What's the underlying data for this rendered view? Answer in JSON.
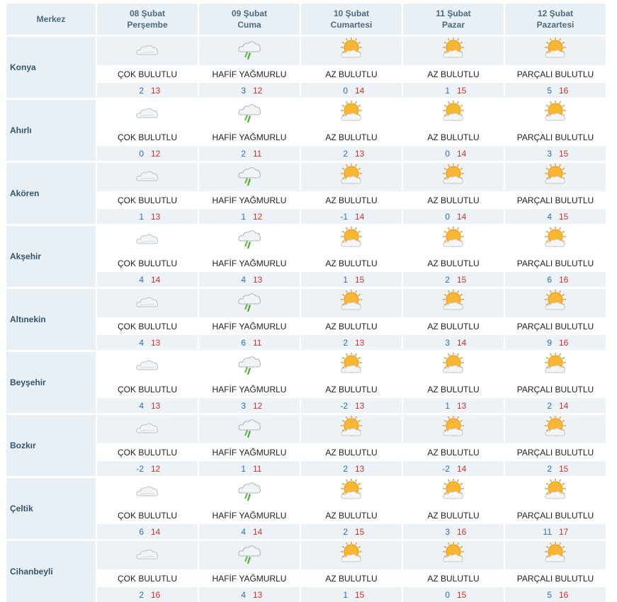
{
  "header": {
    "merkez_label": "Merkez",
    "days": [
      {
        "date": "08 Şubat",
        "weekday": "Perşembe"
      },
      {
        "date": "09 Şubat",
        "weekday": "Cuma"
      },
      {
        "date": "10 Şubat",
        "weekday": "Cumartesi"
      },
      {
        "date": "11 Şubat",
        "weekday": "Pazar"
      },
      {
        "date": "12 Şubat",
        "weekday": "Pazartesi"
      }
    ]
  },
  "icons": {
    "cloud": "cloudy-icon",
    "rain": "light-rain-icon",
    "sun": "partly-sunny-icon"
  },
  "colors": {
    "min_temp": "#2e6bbd",
    "max_temp": "#d1322b",
    "header_bg": "#e8f0f5"
  },
  "rows": [
    {
      "city": "Konya",
      "days": [
        {
          "icon": "cloud",
          "desc": "ÇOK BULUTLU",
          "min": "2",
          "max": "13"
        },
        {
          "icon": "rain",
          "desc": "HAFİF YAĞMURLU",
          "min": "3",
          "max": "12"
        },
        {
          "icon": "sun",
          "desc": "AZ BULUTLU",
          "min": "0",
          "max": "14"
        },
        {
          "icon": "sun",
          "desc": "AZ BULUTLU",
          "min": "1",
          "max": "15"
        },
        {
          "icon": "sun",
          "desc": "PARÇALI BULUTLU",
          "min": "5",
          "max": "16"
        }
      ]
    },
    {
      "city": "Ahırlı",
      "days": [
        {
          "icon": "cloud",
          "desc": "ÇOK BULUTLU",
          "min": "0",
          "max": "12"
        },
        {
          "icon": "rain",
          "desc": "HAFİF YAĞMURLU",
          "min": "2",
          "max": "11"
        },
        {
          "icon": "sun",
          "desc": "AZ BULUTLU",
          "min": "2",
          "max": "13"
        },
        {
          "icon": "sun",
          "desc": "AZ BULUTLU",
          "min": "0",
          "max": "14"
        },
        {
          "icon": "sun",
          "desc": "PARÇALI BULUTLU",
          "min": "3",
          "max": "15"
        }
      ]
    },
    {
      "city": "Akören",
      "days": [
        {
          "icon": "cloud",
          "desc": "ÇOK BULUTLU",
          "min": "1",
          "max": "13"
        },
        {
          "icon": "rain",
          "desc": "HAFİF YAĞMURLU",
          "min": "1",
          "max": "12"
        },
        {
          "icon": "sun",
          "desc": "AZ BULUTLU",
          "min": "-1",
          "max": "14"
        },
        {
          "icon": "sun",
          "desc": "AZ BULUTLU",
          "min": "0",
          "max": "14"
        },
        {
          "icon": "sun",
          "desc": "PARÇALI BULUTLU",
          "min": "4",
          "max": "15"
        }
      ]
    },
    {
      "city": "Akşehir",
      "days": [
        {
          "icon": "cloud",
          "desc": "ÇOK BULUTLU",
          "min": "4",
          "max": "14"
        },
        {
          "icon": "rain",
          "desc": "HAFİF YAĞMURLU",
          "min": "4",
          "max": "13"
        },
        {
          "icon": "sun",
          "desc": "AZ BULUTLU",
          "min": "1",
          "max": "15"
        },
        {
          "icon": "sun",
          "desc": "AZ BULUTLU",
          "min": "2",
          "max": "15"
        },
        {
          "icon": "sun",
          "desc": "PARÇALI BULUTLU",
          "min": "6",
          "max": "16"
        }
      ]
    },
    {
      "city": "Altınekin",
      "days": [
        {
          "icon": "cloud",
          "desc": "ÇOK BULUTLU",
          "min": "4",
          "max": "13"
        },
        {
          "icon": "rain",
          "desc": "HAFİF YAĞMURLU",
          "min": "6",
          "max": "11"
        },
        {
          "icon": "sun",
          "desc": "AZ BULUTLU",
          "min": "2",
          "max": "13"
        },
        {
          "icon": "sun",
          "desc": "AZ BULUTLU",
          "min": "3",
          "max": "14"
        },
        {
          "icon": "sun",
          "desc": "PARÇALI BULUTLU",
          "min": "9",
          "max": "16"
        }
      ]
    },
    {
      "city": "Beyşehir",
      "days": [
        {
          "icon": "cloud",
          "desc": "ÇOK BULUTLU",
          "min": "4",
          "max": "13"
        },
        {
          "icon": "rain",
          "desc": "HAFİF YAĞMURLU",
          "min": "3",
          "max": "12"
        },
        {
          "icon": "sun",
          "desc": "AZ BULUTLU",
          "min": "-2",
          "max": "13"
        },
        {
          "icon": "sun",
          "desc": "AZ BULUTLU",
          "min": "1",
          "max": "13"
        },
        {
          "icon": "sun",
          "desc": "PARÇALI BULUTLU",
          "min": "2",
          "max": "14"
        }
      ]
    },
    {
      "city": "Bozkır",
      "days": [
        {
          "icon": "cloud",
          "desc": "ÇOK BULUTLU",
          "min": "-2",
          "max": "12"
        },
        {
          "icon": "rain",
          "desc": "HAFİF YAĞMURLU",
          "min": "1",
          "max": "11"
        },
        {
          "icon": "sun",
          "desc": "AZ BULUTLU",
          "min": "2",
          "max": "13"
        },
        {
          "icon": "sun",
          "desc": "AZ BULUTLU",
          "min": "-2",
          "max": "14"
        },
        {
          "icon": "sun",
          "desc": "PARÇALI BULUTLU",
          "min": "2",
          "max": "15"
        }
      ]
    },
    {
      "city": "Çeltik",
      "days": [
        {
          "icon": "cloud",
          "desc": "ÇOK BULUTLU",
          "min": "6",
          "max": "14"
        },
        {
          "icon": "rain",
          "desc": "HAFİF YAĞMURLU",
          "min": "4",
          "max": "14"
        },
        {
          "icon": "sun",
          "desc": "AZ BULUTLU",
          "min": "2",
          "max": "15"
        },
        {
          "icon": "sun",
          "desc": "AZ BULUTLU",
          "min": "3",
          "max": "16"
        },
        {
          "icon": "sun",
          "desc": "PARÇALI BULUTLU",
          "min": "11",
          "max": "17"
        }
      ]
    },
    {
      "city": "Cihanbeyli",
      "days": [
        {
          "icon": "cloud",
          "desc": "ÇOK BULUTLU",
          "min": "2",
          "max": "16"
        },
        {
          "icon": "rain",
          "desc": "HAFİF YAĞMURLU",
          "min": "4",
          "max": "13"
        },
        {
          "icon": "sun",
          "desc": "AZ BULUTLU",
          "min": "1",
          "max": "15"
        },
        {
          "icon": "sun",
          "desc": "AZ BULUTLU",
          "min": "0",
          "max": "15"
        },
        {
          "icon": "sun",
          "desc": "PARÇALI BULUTLU",
          "min": "5",
          "max": "16"
        }
      ]
    }
  ]
}
